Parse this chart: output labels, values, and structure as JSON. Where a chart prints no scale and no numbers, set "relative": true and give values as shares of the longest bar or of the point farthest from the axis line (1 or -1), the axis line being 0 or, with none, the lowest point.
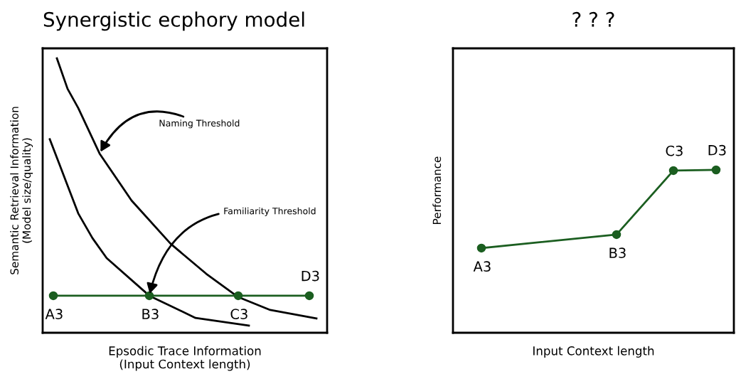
{
  "chart_data": [
    {
      "type": "line",
      "title": "Synergistic ecphory model",
      "xlabel": "Epsodic Trace Information\n(Input Context length)",
      "ylabel": "Semantic Retrieval Information\n(Model size/quality)",
      "relative": true,
      "categories": [
        null,
        null,
        null,
        null,
        null,
        null,
        null,
        null,
        null,
        null,
        null,
        null,
        null,
        null,
        null,
        null,
        null,
        null,
        null,
        null,
        null,
        null,
        null,
        null,
        null,
        null,
        null,
        null,
        null,
        null,
        null,
        null,
        null,
        null,
        null,
        null,
        null,
        null,
        null,
        null,
        null,
        null,
        null,
        null,
        null,
        null,
        null,
        null,
        null,
        null,
        null,
        null,
        null,
        null,
        null,
        null,
        null,
        null,
        null,
        null,
        null,
        null,
        null,
        null,
        null,
        null,
        null,
        null,
        null,
        null,
        null,
        null,
        null,
        null,
        null,
        null,
        null,
        null,
        null,
        null,
        null
      ],
      "series": [
        {
          "color": "#000000",
          "marker": "none",
          "values": [
            null,
            null,
            null,
            null,
            1.0,
            null,
            null,
            0.889,
            null,
            null,
            0.819,
            null,
            null,
            null,
            null,
            null,
            0.653,
            null,
            null,
            null,
            null,
            null,
            null,
            null,
            null,
            0.482,
            null,
            null,
            null,
            null,
            null,
            null,
            null,
            null,
            null,
            null,
            0.324,
            null,
            null,
            null,
            null,
            null,
            null,
            null,
            null,
            null,
            0.215,
            null,
            null,
            null,
            null,
            null,
            null,
            null,
            null,
            0.13,
            null,
            null,
            null,
            null,
            null,
            null,
            null,
            null,
            0.083,
            null,
            null,
            null,
            null,
            null,
            null,
            null,
            null,
            null,
            null,
            null,
            null,
            0.052,
            null,
            null,
            null
          ]
        },
        {
          "color": "#000000",
          "marker": "none",
          "values": [
            null,
            null,
            0.705,
            null,
            null,
            0.604,
            null,
            null,
            null,
            null,
            0.435,
            null,
            null,
            null,
            0.345,
            null,
            null,
            null,
            0.272,
            null,
            null,
            null,
            null,
            null,
            null,
            null,
            null,
            null,
            null,
            null,
            0.135,
            null,
            null,
            null,
            null,
            null,
            null,
            null,
            null,
            null,
            null,
            null,
            null,
            0.054,
            null,
            null,
            null,
            null,
            null,
            null,
            null,
            null,
            null,
            null,
            null,
            null,
            null,
            null,
            0.026,
            null,
            null,
            null,
            null,
            null,
            null,
            null,
            null,
            null,
            null,
            null,
            null,
            null,
            null,
            null,
            null,
            null,
            null,
            null,
            null,
            null,
            null
          ]
        },
        {
          "color": "#1b5e20",
          "marker": "circle",
          "values": [
            null,
            null,
            null,
            0.135,
            null,
            null,
            null,
            null,
            null,
            null,
            null,
            null,
            null,
            null,
            null,
            null,
            null,
            null,
            null,
            null,
            null,
            null,
            null,
            null,
            null,
            null,
            null,
            null,
            null,
            null,
            0.135,
            null,
            null,
            null,
            null,
            null,
            null,
            null,
            null,
            null,
            null,
            null,
            null,
            null,
            null,
            null,
            null,
            null,
            null,
            null,
            null,
            null,
            null,
            null,
            null,
            0.135,
            null,
            null,
            null,
            null,
            null,
            null,
            null,
            null,
            null,
            null,
            null,
            null,
            null,
            null,
            null,
            null,
            null,
            null,
            null,
            0.135,
            null,
            null,
            null,
            null,
            null
          ]
        }
      ],
      "annotations": [
        "Naming Threshold",
        "Familiarity Threshold",
        "A3",
        "B3",
        "C3",
        "D3"
      ]
    },
    {
      "type": "line",
      "title": "? ? ?",
      "xlabel": "Input Context length",
      "ylabel": "Performance",
      "relative": true,
      "categories": [
        null,
        null,
        null,
        null,
        null,
        null,
        null,
        null,
        null,
        null,
        null,
        null,
        null,
        null,
        null,
        null,
        null,
        null,
        null,
        null,
        null,
        null,
        null,
        null,
        null,
        null,
        null,
        null,
        null,
        null,
        null,
        null,
        null,
        null,
        null,
        null,
        null,
        null,
        null,
        null,
        null,
        null,
        null,
        null,
        null,
        null,
        null,
        null,
        null,
        null,
        null,
        null,
        null,
        null,
        null,
        null,
        null,
        null,
        null,
        null,
        null,
        null,
        null,
        null,
        null,
        null,
        null,
        null,
        null,
        null,
        null,
        null,
        null,
        null,
        null,
        null,
        null,
        null,
        null,
        null
      ],
      "series": [
        {
          "color": "#1b5e20",
          "marker": "circle",
          "values": [
            null,
            null,
            null,
            null,
            null,
            null,
            null,
            null,
            0.52,
            null,
            null,
            null,
            null,
            null,
            null,
            null,
            null,
            null,
            null,
            null,
            null,
            null,
            null,
            null,
            null,
            null,
            null,
            null,
            null,
            null,
            null,
            null,
            null,
            null,
            null,
            null,
            null,
            null,
            null,
            null,
            null,
            null,
            null,
            null,
            null,
            null,
            0.603,
            null,
            null,
            null,
            null,
            null,
            null,
            null,
            null,
            null,
            null,
            null,
            null,
            null,
            null,
            null,
            0.996,
            null,
            null,
            null,
            null,
            null,
            null,
            null,
            null,
            null,
            null,
            null,
            1.0,
            null,
            null,
            null,
            null,
            null
          ]
        }
      ],
      "annotations": [
        "A3",
        "B3",
        "C3",
        "D3"
      ]
    }
  ]
}
